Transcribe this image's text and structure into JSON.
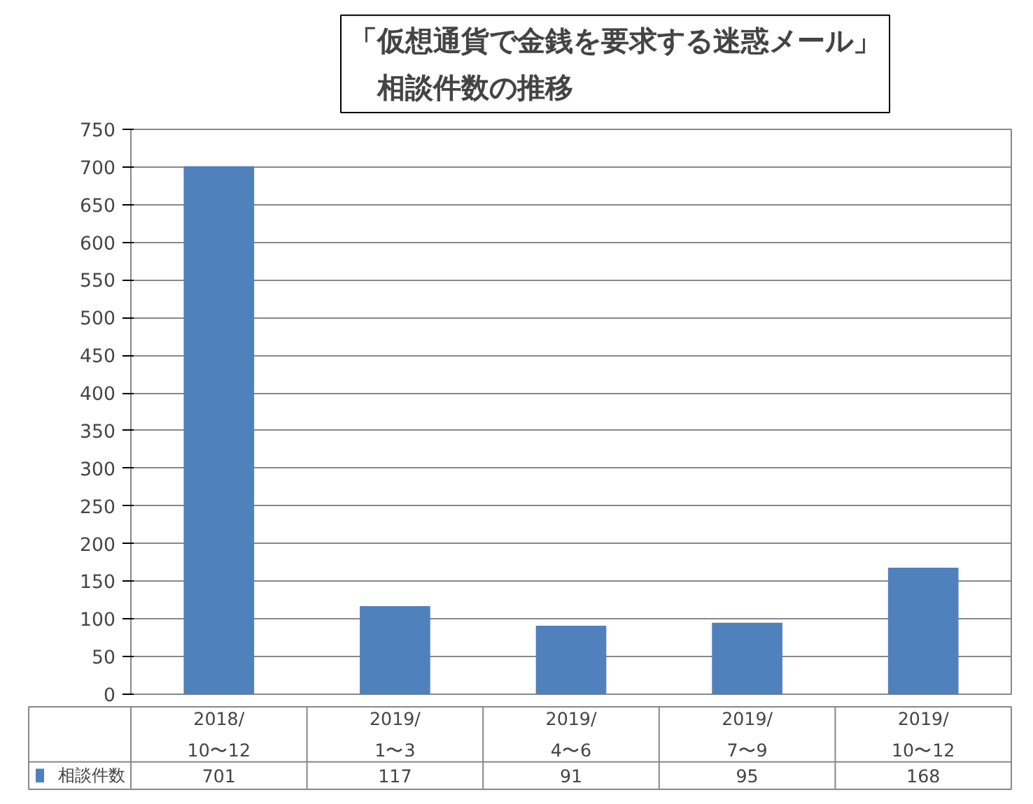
{
  "chart_data": {
    "type": "bar",
    "title": "「仮想通貨で金銭を要求する迷惑メール」",
    "subtitle": "相談件数の推移",
    "categories": [
      "2018/\n10〜12",
      "2019/\n1〜3",
      "2019/\n4〜6",
      "2019/\n7〜9",
      "2019/\n10〜12"
    ],
    "series": [
      {
        "name": "相談件数",
        "color": "#4f81bd",
        "values": [
          701,
          117,
          91,
          95,
          168
        ]
      }
    ],
    "ylim": [
      0,
      750
    ],
    "yticks": [
      0,
      50,
      100,
      150,
      200,
      250,
      300,
      350,
      400,
      450,
      500,
      550,
      600,
      650,
      700,
      750
    ],
    "grid": "y",
    "data_labels": true,
    "legend": "bottom"
  }
}
